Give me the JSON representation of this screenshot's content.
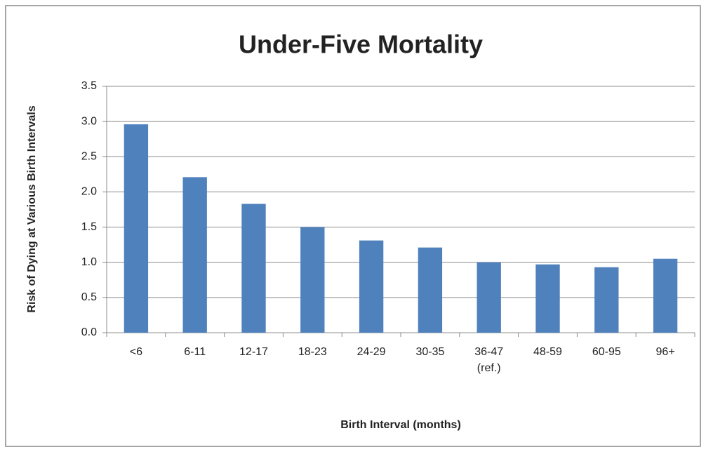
{
  "chart_data": {
    "type": "bar",
    "title": "Under-Five Mortality",
    "x_label": "Birth Interval (months)",
    "y_label": "Risk of Dying at Various Birth Intervals",
    "categories": [
      "<6",
      "6-11",
      "12-17",
      "18-23",
      "24-29",
      "30-35",
      "36-47\n(ref.)",
      "48-59",
      "60-95",
      "96+"
    ],
    "values": [
      2.96,
      2.21,
      1.83,
      1.5,
      1.31,
      1.21,
      1.0,
      0.97,
      0.93,
      1.05
    ],
    "color": "#4f81bd",
    "ylim": [
      0,
      3.5
    ],
    "yticks": [
      {
        "value": 0,
        "label": "0.0"
      },
      0.5,
      {
        "value": 1,
        "label": "1.0"
      },
      1.5,
      {
        "value": 2,
        "label": "2.0"
      },
      2.5,
      {
        "value": 3,
        "label": "3.0"
      },
      3.5
    ],
    "grid": true
  }
}
